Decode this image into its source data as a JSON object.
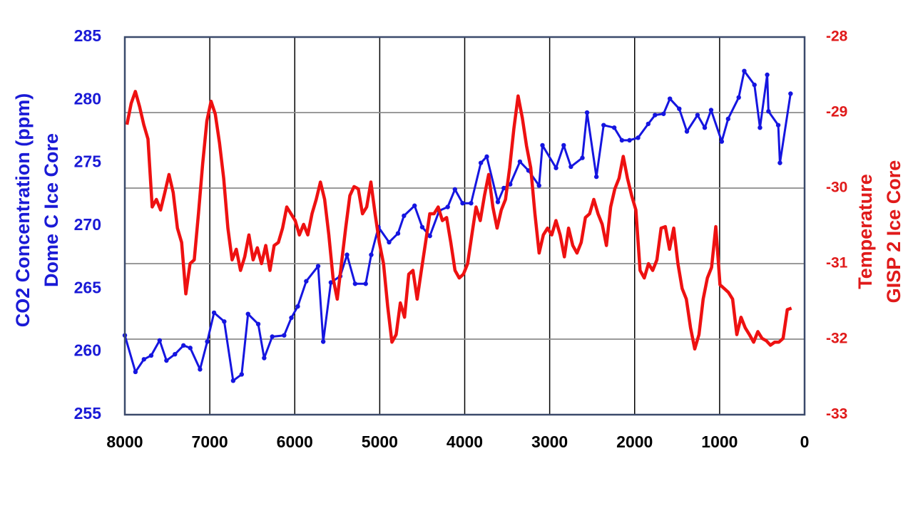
{
  "chart_data": {
    "type": "line",
    "ylabel": [
      "CO2 Concentration (ppm)",
      "Dome C Ice Core"
    ],
    "y2label": [
      "Temperature",
      "GISP 2 Ice Core"
    ],
    "xlim": [
      8000,
      0
    ],
    "xticks": [
      8000,
      7000,
      6000,
      5000,
      4000,
      3000,
      2000,
      1000,
      0
    ],
    "ylim": [
      255,
      285
    ],
    "yticks": [
      255,
      260,
      265,
      270,
      275,
      280,
      285
    ],
    "y2lim": [
      -33,
      -28
    ],
    "y2ticks": [
      -33,
      -32,
      -31,
      -30,
      -29,
      -28
    ],
    "ycolor": "#1a1ad6",
    "y2color": "#e01a1a",
    "grid": true,
    "series": [
      {
        "color": "#1515e0",
        "markers": true,
        "x": [
          8000,
          7875,
          7775,
          7690,
          7590,
          7510,
          7410,
          7310,
          7230,
          7115,
          7030,
          6950,
          6830,
          6725,
          6625,
          6550,
          6430,
          6360,
          6265,
          6125,
          6040,
          5965,
          5865,
          5725,
          5665,
          5575,
          5465,
          5385,
          5290,
          5165,
          5100,
          5015,
          4890,
          4785,
          4715,
          4590,
          4500,
          4410,
          4300,
          4200,
          4115,
          4025,
          3925,
          3810,
          3740,
          3610,
          3540,
          3465,
          3350,
          3250,
          3125,
          3085,
          2925,
          2835,
          2750,
          2615,
          2560,
          2450,
          2365,
          2240,
          2150,
          2060,
          1960,
          1840,
          1760,
          1660,
          1585,
          1475,
          1385,
          1260,
          1175,
          1100,
          975,
          900,
          775,
          710,
          590,
          525,
          440,
          425,
          310,
          290,
          165
        ],
        "values": [
          261.3,
          258.4,
          259.4,
          259.7,
          260.9,
          259.3,
          259.8,
          260.5,
          260.3,
          258.6,
          260.8,
          263.1,
          262.4,
          257.7,
          258.2,
          263.0,
          262.2,
          259.5,
          261.2,
          261.3,
          262.7,
          263.6,
          265.6,
          266.8,
          260.8,
          265.5,
          266.0,
          267.7,
          265.4,
          265.4,
          267.7,
          269.9,
          268.7,
          269.4,
          270.8,
          271.6,
          269.9,
          269.2,
          271.2,
          271.5,
          272.9,
          271.8,
          271.8,
          275.0,
          275.5,
          271.9,
          273.0,
          273.3,
          275.1,
          274.4,
          273.2,
          276.4,
          274.6,
          276.4,
          274.7,
          275.4,
          279.0,
          273.9,
          278.0,
          277.8,
          276.8,
          276.8,
          277.0,
          278.1,
          278.8,
          278.9,
          280.1,
          279.3,
          277.5,
          278.8,
          277.8,
          279.2,
          276.7,
          278.5,
          280.2,
          282.3,
          281.2,
          277.8,
          282.0,
          279.1,
          278.0,
          275.0,
          280.5
        ]
      },
      {
        "color": "#ee1111",
        "axis": "y2",
        "markers": false,
        "x": [
          7975,
          7925.5,
          7876,
          7826.5,
          7777,
          7727.5,
          7678,
          7628.5,
          7579,
          7529.5,
          7480,
          7430.5,
          7381,
          7331.5,
          7282,
          7232.5,
          7183,
          7133.5,
          7084,
          7034.5,
          6985,
          6935.5,
          6886,
          6836.5,
          6787,
          6737.5,
          6688,
          6638.5,
          6589,
          6539.5,
          6490,
          6440.5,
          6391,
          6341.5,
          6292,
          6242.5,
          6193,
          6143.5,
          6094,
          6044.5,
          5995,
          5945.5,
          5896,
          5846.5,
          5797,
          5747.5,
          5698,
          5648.5,
          5599,
          5549.5,
          5500,
          5450.5,
          5401,
          5351.5,
          5302,
          5252.5,
          5203,
          5153.5,
          5104,
          5054.5,
          5005,
          4955.5,
          4906,
          4856.5,
          4807,
          4757.5,
          4708,
          4658.5,
          4609,
          4559.5,
          4510,
          4460.5,
          4411,
          4361.5,
          4312,
          4262.5,
          4213,
          4163.5,
          4114,
          4064.5,
          4015,
          3965.5,
          3916,
          3866.5,
          3817,
          3767.5,
          3718,
          3668.5,
          3619,
          3569.5,
          3520,
          3470.5,
          3421,
          3371.5,
          3322,
          3272.5,
          3223,
          3173.5,
          3124,
          3074.5,
          3025,
          2975.5,
          2926,
          2876.5,
          2827,
          2777.5,
          2728,
          2678.5,
          2629,
          2579.5,
          2530,
          2480.5,
          2431,
          2381.5,
          2332,
          2282.5,
          2233,
          2183.5,
          2134,
          2084.5,
          2035,
          1985.5,
          1936,
          1886.5,
          1837,
          1787.5,
          1738,
          1688.5,
          1639,
          1589.5,
          1540,
          1490.5,
          1441,
          1391.5,
          1342,
          1292.5,
          1243,
          1193.5,
          1144,
          1094.5,
          1045,
          995.5,
          946,
          896.5,
          847,
          797.5,
          748,
          698.5,
          649,
          599.5,
          550,
          500.5,
          451,
          401.5,
          352,
          302.5,
          253,
          203.5,
          154
        ],
        "values": [
          -29.16,
          -28.88,
          -28.72,
          -28.92,
          -29.16,
          -29.35,
          -30.25,
          -30.15,
          -30.29,
          -30.06,
          -29.82,
          -30.06,
          -30.53,
          -30.72,
          -31.4,
          -31.0,
          -30.95,
          -30.34,
          -29.68,
          -29.11,
          -28.85,
          -29.02,
          -29.4,
          -29.87,
          -30.53,
          -30.95,
          -30.81,
          -31.09,
          -30.91,
          -30.62,
          -30.95,
          -30.79,
          -31.0,
          -30.76,
          -31.09,
          -30.76,
          -30.72,
          -30.53,
          -30.25,
          -30.34,
          -30.43,
          -30.62,
          -30.48,
          -30.62,
          -30.34,
          -30.15,
          -29.92,
          -30.15,
          -30.62,
          -31.19,
          -31.47,
          -31.0,
          -30.53,
          -30.1,
          -29.98,
          -30.01,
          -30.34,
          -30.25,
          -29.92,
          -30.34,
          -30.72,
          -31.0,
          -31.57,
          -32.04,
          -31.94,
          -31.52,
          -31.71,
          -31.14,
          -31.09,
          -31.47,
          -31.09,
          -30.72,
          -30.34,
          -30.34,
          -30.25,
          -30.43,
          -30.39,
          -30.72,
          -31.09,
          -31.19,
          -31.14,
          -31.0,
          -30.62,
          -30.25,
          -30.43,
          -30.1,
          -29.82,
          -30.25,
          -30.53,
          -30.29,
          -30.15,
          -29.73,
          -29.21,
          -28.78,
          -29.07,
          -29.44,
          -29.73,
          -30.34,
          -30.86,
          -30.62,
          -30.53,
          -30.62,
          -30.43,
          -30.62,
          -30.91,
          -30.53,
          -30.76,
          -30.86,
          -30.72,
          -30.39,
          -30.34,
          -30.15,
          -30.34,
          -30.48,
          -30.76,
          -30.25,
          -30.01,
          -29.87,
          -29.58,
          -29.87,
          -30.1,
          -30.29,
          -31.09,
          -31.19,
          -31.0,
          -31.09,
          -30.95,
          -30.53,
          -30.51,
          -30.81,
          -30.53,
          -31.0,
          -31.33,
          -31.47,
          -31.85,
          -32.13,
          -31.94,
          -31.47,
          -31.19,
          -31.05,
          -30.51,
          -31.28,
          -31.33,
          -31.38,
          -31.47,
          -31.94,
          -31.71,
          -31.85,
          -31.94,
          -32.04,
          -31.9,
          -31.99,
          -32.02,
          -32.08,
          -32.04,
          -32.04,
          -31.99,
          -31.61,
          -31.59
        ]
      }
    ]
  }
}
